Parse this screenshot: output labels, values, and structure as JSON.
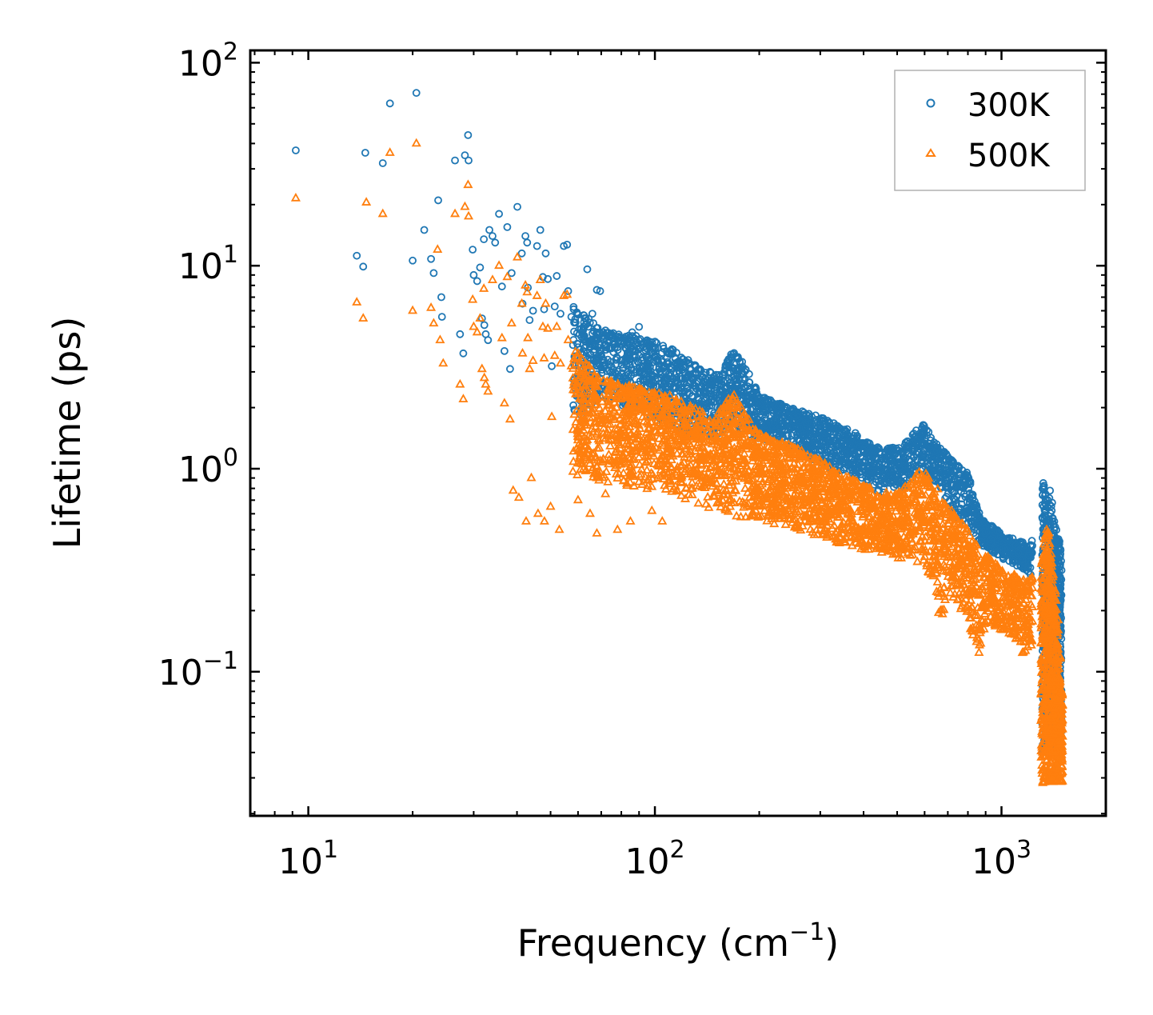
{
  "chart_data": {
    "type": "scatter",
    "xlabel": "Frequency (cm",
    "xlabel_sup": "−1",
    "xlabel_tail": ")",
    "ylabel": "Lifetime (ps)",
    "x_scale": "log",
    "y_scale": "log",
    "xlim": [
      6.8,
      2000
    ],
    "ylim": [
      0.0195,
      115
    ],
    "x_ticks": [
      {
        "value": 10,
        "base": "10",
        "exp": "1"
      },
      {
        "value": 100,
        "base": "10",
        "exp": "2"
      },
      {
        "value": 1000,
        "base": "10",
        "exp": "3"
      }
    ],
    "y_ticks": [
      {
        "value": 0.1,
        "base": "10",
        "exp": "−1"
      },
      {
        "value": 1,
        "base": "10",
        "exp": "0"
      },
      {
        "value": 10,
        "base": "10",
        "exp": "1"
      },
      {
        "value": 100,
        "base": "10",
        "exp": "2"
      }
    ],
    "legend_position": "top-right",
    "series": [
      {
        "name": "300K",
        "marker": "circle",
        "color": "#1f77b4",
        "sparse_points": [
          [
            9.2,
            37
          ],
          [
            13.8,
            11.2
          ],
          [
            14.4,
            9.9
          ],
          [
            14.6,
            36
          ],
          [
            16.4,
            32
          ],
          [
            17.2,
            63
          ],
          [
            20.0,
            10.6
          ],
          [
            20.5,
            71
          ],
          [
            21.6,
            15
          ],
          [
            22.6,
            10.8
          ],
          [
            23.0,
            9.2
          ],
          [
            23.7,
            21
          ],
          [
            24.2,
            7.0
          ],
          [
            24.3,
            5.6
          ],
          [
            26.5,
            33
          ],
          [
            27.4,
            4.6
          ],
          [
            28.0,
            3.7
          ],
          [
            28.3,
            35
          ],
          [
            28.9,
            44
          ],
          [
            29.0,
            33
          ],
          [
            29.8,
            12
          ],
          [
            30.0,
            9.0
          ],
          [
            30.7,
            8.4
          ],
          [
            31.3,
            9.8
          ],
          [
            31.7,
            5.5
          ],
          [
            32.1,
            13.5
          ],
          [
            32.2,
            5.1
          ],
          [
            32.5,
            4.6
          ],
          [
            33.0,
            4.3
          ],
          [
            33.3,
            15
          ],
          [
            34.0,
            14
          ],
          [
            34.6,
            13
          ],
          [
            35.5,
            18
          ],
          [
            36.2,
            7.9
          ],
          [
            36.8,
            3.8
          ],
          [
            37.5,
            15.5
          ],
          [
            38.6,
            9.2
          ],
          [
            38.2,
            3.1
          ],
          [
            40.1,
            19.5
          ],
          [
            41.3,
            11.5
          ],
          [
            41.5,
            6.5
          ],
          [
            42.3,
            14
          ],
          [
            42.8,
            13
          ],
          [
            43.0,
            7.8
          ],
          [
            43.5,
            5.4
          ],
          [
            44.5,
            6.0
          ],
          [
            45.7,
            12.5
          ],
          [
            46.7,
            15
          ],
          [
            47.5,
            8.8
          ],
          [
            47.9,
            6.1
          ],
          [
            48.4,
            11.5
          ],
          [
            49.1,
            8.6
          ],
          [
            50.4,
            3.2
          ],
          [
            51.4,
            6.3
          ],
          [
            52.1,
            8.9
          ],
          [
            53.4,
            5.8
          ],
          [
            54.6,
            12.5
          ],
          [
            55.8,
            12.7
          ],
          [
            56.2,
            7.5
          ],
          [
            57.4,
            5.6
          ],
          [
            58.3,
            6.1
          ],
          [
            60.6,
            4.6
          ],
          [
            62.2,
            5.0
          ],
          [
            63.8,
            9.6
          ],
          [
            66.0,
            5.8
          ],
          [
            68.0,
            7.6
          ],
          [
            69.5,
            7.5
          ],
          [
            72.0,
            4.8
          ],
          [
            75.0,
            4.6
          ],
          [
            80.0,
            4.4
          ],
          [
            86.0,
            4.7
          ],
          [
            90.0,
            5.0
          ],
          [
            95.0,
            3.9
          ]
        ],
        "upper_envelope": [
          [
            58,
            6.5
          ],
          [
            70,
            4.8
          ],
          [
            90,
            4.5
          ],
          [
            110,
            4.0
          ],
          [
            140,
            3.0
          ],
          [
            155,
            3.0
          ],
          [
            168,
            3.8
          ],
          [
            180,
            3.4
          ],
          [
            200,
            2.3
          ],
          [
            250,
            2.0
          ],
          [
            300,
            1.8
          ],
          [
            380,
            1.5
          ],
          [
            450,
            1.25
          ],
          [
            520,
            1.3
          ],
          [
            590,
            1.7
          ],
          [
            640,
            1.4
          ],
          [
            720,
            1.1
          ],
          [
            800,
            0.95
          ],
          [
            870,
            0.58
          ],
          [
            1000,
            0.48
          ],
          [
            1100,
            0.45
          ],
          [
            1200,
            0.42
          ],
          [
            1230,
            0.45
          ]
        ],
        "lower_envelope": [
          [
            58,
            1.6
          ],
          [
            70,
            2.2
          ],
          [
            90,
            1.9
          ],
          [
            110,
            1.6
          ],
          [
            140,
            1.4
          ],
          [
            170,
            1.5
          ],
          [
            200,
            1.4
          ],
          [
            250,
            1.25
          ],
          [
            300,
            1.05
          ],
          [
            380,
            0.9
          ],
          [
            450,
            0.75
          ],
          [
            520,
            0.8
          ],
          [
            590,
            1.0
          ],
          [
            640,
            0.85
          ],
          [
            720,
            0.62
          ],
          [
            800,
            0.5
          ],
          [
            870,
            0.42
          ],
          [
            1000,
            0.36
          ],
          [
            1100,
            0.33
          ],
          [
            1200,
            0.3
          ],
          [
            1230,
            0.28
          ]
        ],
        "high_band_points": [
          [
            1320,
            0.85
          ],
          [
            1340,
            0.75
          ],
          [
            1360,
            0.7
          ],
          [
            1380,
            0.78
          ],
          [
            1400,
            0.68
          ],
          [
            1420,
            0.55
          ],
          [
            1440,
            0.5
          ],
          [
            1460,
            0.45
          ],
          [
            1480,
            0.4
          ]
        ]
      },
      {
        "name": "500K",
        "marker": "triangle",
        "color": "#ff7f0e",
        "sparse_points": [
          [
            9.2,
            21.5
          ],
          [
            13.8,
            6.6
          ],
          [
            14.4,
            5.5
          ],
          [
            14.7,
            20.5
          ],
          [
            16.4,
            18
          ],
          [
            17.2,
            36
          ],
          [
            20.0,
            6.0
          ],
          [
            20.5,
            40
          ],
          [
            22.6,
            6.2
          ],
          [
            23.0,
            5.2
          ],
          [
            23.6,
            12
          ],
          [
            24.0,
            4.3
          ],
          [
            24.5,
            3.3
          ],
          [
            26.5,
            18
          ],
          [
            27.4,
            2.6
          ],
          [
            28.0,
            2.2
          ],
          [
            28.3,
            19.5
          ],
          [
            28.9,
            25
          ],
          [
            29.0,
            17.5
          ],
          [
            29.8,
            6.8
          ],
          [
            30.0,
            5.0
          ],
          [
            30.7,
            4.7
          ],
          [
            31.3,
            5.5
          ],
          [
            31.7,
            3.1
          ],
          [
            32.1,
            7.7
          ],
          [
            32.2,
            2.8
          ],
          [
            32.5,
            2.6
          ],
          [
            33.0,
            2.4
          ],
          [
            34.0,
            8.5
          ],
          [
            35.5,
            10
          ],
          [
            36.2,
            4.4
          ],
          [
            36.8,
            2.1
          ],
          [
            37.5,
            8.8
          ],
          [
            38.2,
            1.75
          ],
          [
            38.6,
            5.2
          ],
          [
            40.1,
            11
          ],
          [
            41.3,
            6.5
          ],
          [
            41.5,
            3.7
          ],
          [
            42.3,
            8.0
          ],
          [
            42.8,
            7.4
          ],
          [
            43.0,
            4.4
          ],
          [
            43.5,
            3.1
          ],
          [
            44.5,
            3.4
          ],
          [
            45.7,
            7.1
          ],
          [
            46.7,
            8.5
          ],
          [
            47.5,
            5.0
          ],
          [
            47.9,
            3.5
          ],
          [
            48.4,
            6.5
          ],
          [
            49.1,
            4.9
          ],
          [
            50.4,
            1.8
          ],
          [
            51.4,
            3.6
          ],
          [
            52.1,
            5.0
          ],
          [
            53.4,
            3.3
          ],
          [
            54.6,
            7.1
          ],
          [
            55.8,
            7.2
          ],
          [
            56.2,
            4.3
          ],
          [
            57.4,
            3.2
          ],
          [
            39.0,
            0.78
          ],
          [
            40.5,
            0.72
          ],
          [
            42.5,
            0.55
          ],
          [
            44.0,
            0.9
          ],
          [
            46.0,
            0.6
          ],
          [
            48.0,
            0.55
          ],
          [
            50.0,
            0.65
          ],
          [
            53.0,
            0.5
          ],
          [
            60.0,
            0.7
          ],
          [
            65.0,
            0.6
          ],
          [
            68.0,
            0.48
          ],
          [
            72.0,
            0.75
          ],
          [
            78.0,
            0.5
          ],
          [
            85.0,
            0.55
          ],
          [
            98.0,
            0.62
          ],
          [
            105.0,
            0.55
          ]
        ],
        "upper_envelope": [
          [
            58,
            4.0
          ],
          [
            70,
            2.8
          ],
          [
            90,
            2.5
          ],
          [
            110,
            2.3
          ],
          [
            130,
            2.0
          ],
          [
            150,
            1.8
          ],
          [
            168,
            2.4
          ],
          [
            180,
            1.9
          ],
          [
            200,
            1.5
          ],
          [
            250,
            1.3
          ],
          [
            300,
            1.1
          ],
          [
            380,
            0.9
          ],
          [
            450,
            0.75
          ],
          [
            520,
            0.8
          ],
          [
            590,
            1.0
          ],
          [
            640,
            0.85
          ],
          [
            720,
            0.62
          ],
          [
            800,
            0.5
          ],
          [
            870,
            0.4
          ],
          [
            1000,
            0.32
          ],
          [
            1100,
            0.3
          ],
          [
            1200,
            0.28
          ],
          [
            1230,
            0.3
          ]
        ],
        "lower_envelope": [
          [
            58,
            0.9
          ],
          [
            70,
            0.85
          ],
          [
            90,
            0.8
          ],
          [
            110,
            0.75
          ],
          [
            140,
            0.65
          ],
          [
            170,
            0.58
          ],
          [
            200,
            0.55
          ],
          [
            250,
            0.5
          ],
          [
            300,
            0.45
          ],
          [
            380,
            0.4
          ],
          [
            450,
            0.38
          ],
          [
            520,
            0.35
          ],
          [
            590,
            0.32
          ],
          [
            640,
            0.28
          ],
          [
            665,
            0.16
          ],
          [
            700,
            0.25
          ],
          [
            800,
            0.18
          ],
          [
            850,
            0.1
          ],
          [
            900,
            0.17
          ],
          [
            1000,
            0.16
          ],
          [
            1100,
            0.14
          ],
          [
            1150,
            0.11
          ],
          [
            1200,
            0.13
          ],
          [
            1230,
            0.12
          ]
        ],
        "high_band_points": [
          [
            1310,
            0.35
          ],
          [
            1330,
            0.45
          ],
          [
            1350,
            0.5
          ],
          [
            1370,
            0.48
          ],
          [
            1390,
            0.38
          ],
          [
            1410,
            0.3
          ],
          [
            1430,
            0.25
          ],
          [
            1450,
            0.18
          ],
          [
            1470,
            0.12
          ],
          [
            1490,
            0.08
          ]
        ],
        "high_band_min": 0.028
      }
    ]
  }
}
